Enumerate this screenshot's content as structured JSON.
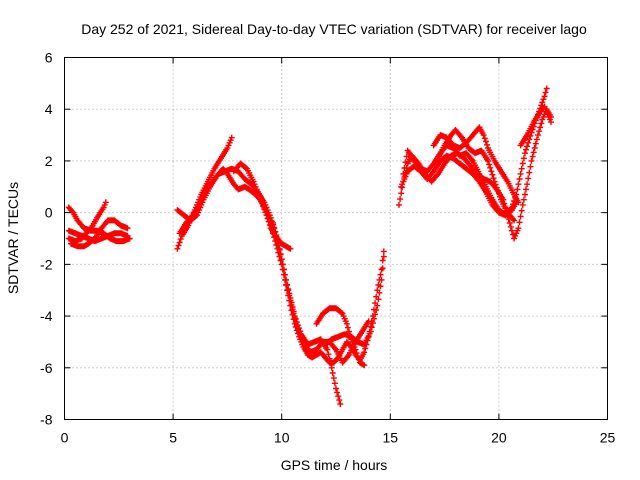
{
  "chart_data": {
    "type": "scatter",
    "title": "Day 252 of 2021, Sidereal Day-to-day VTEC variation (SDTVAR) for receiver lago",
    "xlabel": "GPS time / hours",
    "ylabel": "SDTVAR / TECUs",
    "xlim": [
      0,
      25
    ],
    "ylim": [
      -8,
      6
    ],
    "xticks": [
      0,
      5,
      10,
      15,
      20,
      25
    ],
    "yticks": [
      -8,
      -6,
      -4,
      -2,
      0,
      2,
      4,
      6
    ],
    "xtick_labels": [
      "0",
      "5",
      "10",
      "15",
      "20",
      "25"
    ],
    "ytick_labels": [
      "-8",
      "-6",
      "-4",
      "-2",
      "0",
      "2",
      "4",
      "6"
    ],
    "grid": true,
    "marker": "+",
    "series": [
      {
        "color": "#ff0000",
        "tracks": [
          [
            [
              0.2,
              -0.7
            ],
            [
              0.5,
              -0.8
            ],
            [
              0.8,
              -0.9
            ],
            [
              1.1,
              -1.0
            ],
            [
              1.4,
              -1.1
            ],
            [
              1.7,
              -1.0
            ],
            [
              2.0,
              -0.9
            ],
            [
              2.3,
              -0.8
            ],
            [
              2.6,
              -0.8
            ],
            [
              2.9,
              -0.9
            ]
          ],
          [
            [
              0.2,
              0.2
            ],
            [
              0.4,
              0.0
            ],
            [
              0.6,
              -0.3
            ],
            [
              0.9,
              -0.6
            ],
            [
              1.2,
              -0.7
            ],
            [
              1.5,
              -0.7
            ],
            [
              1.8,
              -0.8
            ],
            [
              2.1,
              -1.0
            ],
            [
              2.4,
              -1.1
            ],
            [
              2.7,
              -1.1
            ],
            [
              3.0,
              -1.0
            ]
          ],
          [
            [
              0.3,
              -1.2
            ],
            [
              0.6,
              -1.3
            ],
            [
              0.9,
              -1.3
            ],
            [
              1.1,
              -1.2
            ],
            [
              1.4,
              -1.0
            ],
            [
              1.7,
              -0.6
            ],
            [
              2.0,
              -0.3
            ],
            [
              2.3,
              -0.3
            ],
            [
              2.6,
              -0.5
            ],
            [
              2.9,
              -0.6
            ]
          ],
          [
            [
              0.2,
              -1.0
            ],
            [
              0.5,
              -1.1
            ],
            [
              0.8,
              -1.0
            ],
            [
              1.0,
              -0.8
            ],
            [
              1.3,
              -0.5
            ],
            [
              1.5,
              -0.2
            ],
            [
              1.8,
              0.2
            ],
            [
              1.9,
              0.4
            ]
          ],
          [
            [
              5.2,
              0.1
            ],
            [
              5.5,
              -0.1
            ],
            [
              5.8,
              -0.3
            ],
            [
              6.1,
              -0.1
            ],
            [
              6.4,
              0.5
            ],
            [
              6.7,
              1.0
            ],
            [
              7.0,
              1.4
            ],
            [
              7.3,
              1.7
            ],
            [
              7.5,
              1.5
            ],
            [
              7.8,
              1.1
            ],
            [
              8.0,
              0.9
            ],
            [
              8.3,
              1.0
            ],
            [
              8.5,
              0.9
            ],
            [
              8.8,
              0.7
            ],
            [
              9.0,
              0.5
            ],
            [
              9.2,
              0.2
            ],
            [
              9.4,
              -0.2
            ],
            [
              9.6,
              -0.8
            ],
            [
              9.8,
              -1.4
            ],
            [
              10.0,
              -2.0
            ],
            [
              10.2,
              -2.8
            ],
            [
              10.4,
              -3.6
            ],
            [
              10.6,
              -4.3
            ],
            [
              10.8,
              -4.8
            ],
            [
              11.0,
              -5.2
            ],
            [
              11.2,
              -5.5
            ],
            [
              11.4,
              -5.6
            ],
            [
              11.6,
              -5.5
            ],
            [
              11.8,
              -5.4
            ],
            [
              12.0,
              -5.6
            ],
            [
              12.2,
              -5.8
            ],
            [
              12.4,
              -5.8
            ],
            [
              12.6,
              -5.6
            ],
            [
              12.8,
              -5.3
            ],
            [
              13.0,
              -5.0
            ],
            [
              13.2,
              -5.2
            ],
            [
              13.4,
              -5.5
            ],
            [
              13.6,
              -5.7
            ],
            [
              13.8,
              -5.4
            ],
            [
              14.0,
              -4.8
            ],
            [
              14.2,
              -4.0
            ],
            [
              14.4,
              -3.0
            ],
            [
              14.6,
              -2.2
            ],
            [
              14.7,
              -1.5
            ]
          ],
          [
            [
              5.2,
              -1.4
            ],
            [
              5.4,
              -0.9
            ],
            [
              5.7,
              -0.5
            ],
            [
              6.0,
              0.1
            ],
            [
              6.3,
              0.7
            ],
            [
              6.6,
              1.2
            ],
            [
              6.9,
              1.7
            ],
            [
              7.2,
              2.1
            ],
            [
              7.5,
              2.5
            ],
            [
              7.7,
              2.9
            ]
          ],
          [
            [
              5.3,
              -0.8
            ],
            [
              5.6,
              -0.4
            ],
            [
              5.9,
              -0.1
            ],
            [
              6.2,
              0.3
            ],
            [
              6.5,
              0.8
            ],
            [
              6.8,
              1.2
            ],
            [
              7.1,
              1.5
            ],
            [
              7.4,
              1.6
            ],
            [
              7.7,
              1.7
            ],
            [
              8.0,
              1.6
            ],
            [
              8.3,
              1.3
            ],
            [
              8.6,
              1.1
            ],
            [
              8.9,
              0.8
            ],
            [
              9.2,
              0.4
            ],
            [
              9.5,
              -0.2
            ],
            [
              9.8,
              -1.0
            ],
            [
              10.1,
              -2.2
            ],
            [
              10.4,
              -3.4
            ],
            [
              10.7,
              -4.4
            ],
            [
              11.0,
              -5.0
            ],
            [
              11.3,
              -5.4
            ],
            [
              11.6,
              -5.3
            ],
            [
              11.9,
              -5.0
            ],
            [
              12.2,
              -5.0
            ],
            [
              12.5,
              -5.3
            ],
            [
              12.8,
              -5.8
            ],
            [
              13.1,
              -5.5
            ],
            [
              13.4,
              -5.0
            ],
            [
              13.7,
              -4.6
            ],
            [
              14.0,
              -4.2
            ]
          ],
          [
            [
              7.8,
              1.6
            ],
            [
              8.1,
              1.9
            ],
            [
              8.4,
              1.7
            ],
            [
              8.7,
              1.2
            ],
            [
              9.0,
              0.6
            ],
            [
              9.3,
              -0.1
            ],
            [
              9.5,
              -0.6
            ],
            [
              9.7,
              -0.9
            ],
            [
              10.0,
              -1.2
            ],
            [
              10.2,
              -1.3
            ],
            [
              10.4,
              -1.4
            ]
          ],
          [
            [
              9.6,
              -0.4
            ],
            [
              9.8,
              -1.1
            ],
            [
              10.0,
              -1.8
            ],
            [
              10.2,
              -2.6
            ],
            [
              10.4,
              -3.3
            ],
            [
              10.6,
              -4.0
            ],
            [
              10.9,
              -4.7
            ],
            [
              11.2,
              -5.1
            ],
            [
              11.5,
              -5.0
            ],
            [
              11.8,
              -4.9
            ],
            [
              12.1,
              -5.3
            ],
            [
              12.3,
              -6.0
            ],
            [
              12.5,
              -6.8
            ],
            [
              12.7,
              -7.4
            ]
          ],
          [
            [
              11.6,
              -4.3
            ],
            [
              11.9,
              -3.9
            ],
            [
              12.2,
              -3.7
            ],
            [
              12.5,
              -3.7
            ],
            [
              12.8,
              -3.9
            ],
            [
              13.0,
              -4.3
            ],
            [
              13.2,
              -4.9
            ],
            [
              13.4,
              -5.3
            ],
            [
              13.6,
              -5.8
            ],
            [
              13.8,
              -5.9
            ]
          ],
          [
            [
              12.0,
              -5.1
            ],
            [
              12.3,
              -4.9
            ],
            [
              12.6,
              -4.8
            ],
            [
              12.9,
              -4.7
            ],
            [
              13.2,
              -4.8
            ],
            [
              13.5,
              -5.0
            ],
            [
              13.8,
              -5.1
            ],
            [
              14.1,
              -4.6
            ],
            [
              14.4,
              -3.6
            ],
            [
              14.6,
              -2.6
            ],
            [
              14.7,
              -1.7
            ]
          ],
          [
            [
              15.4,
              0.3
            ],
            [
              15.6,
              1.2
            ],
            [
              15.8,
              1.9
            ],
            [
              16.0,
              2.2
            ],
            [
              16.3,
              1.9
            ],
            [
              16.6,
              1.5
            ],
            [
              16.9,
              1.2
            ],
            [
              17.2,
              1.5
            ],
            [
              17.5,
              1.9
            ],
            [
              17.8,
              2.2
            ],
            [
              18.1,
              2.3
            ],
            [
              18.4,
              2.1
            ],
            [
              18.7,
              1.8
            ],
            [
              19.0,
              1.5
            ],
            [
              19.3,
              1.3
            ],
            [
              19.6,
              1.2
            ],
            [
              19.9,
              0.9
            ],
            [
              20.2,
              0.5
            ],
            [
              20.5,
              -0.4
            ],
            [
              20.7,
              -1.0
            ],
            [
              20.9,
              -0.6
            ],
            [
              21.1,
              0.3
            ],
            [
              21.3,
              1.1
            ],
            [
              21.5,
              2.0
            ],
            [
              21.8,
              3.0
            ],
            [
              22.0,
              3.6
            ],
            [
              22.2,
              4.0
            ],
            [
              22.4,
              3.7
            ]
          ],
          [
            [
              15.6,
              1.5
            ],
            [
              15.8,
              2.4
            ],
            [
              16.1,
              2.0
            ],
            [
              16.4,
              1.7
            ],
            [
              16.7,
              1.6
            ],
            [
              17.0,
              1.9
            ],
            [
              17.3,
              2.3
            ],
            [
              17.6,
              2.6
            ],
            [
              17.9,
              2.5
            ],
            [
              18.2,
              2.2
            ],
            [
              18.5,
              2.3
            ],
            [
              18.8,
              2.0
            ],
            [
              19.1,
              1.5
            ],
            [
              19.4,
              1.0
            ],
            [
              19.7,
              0.5
            ],
            [
              20.0,
              0.1
            ],
            [
              20.3,
              -0.1
            ],
            [
              20.6,
              0.2
            ],
            [
              20.8,
              0.7
            ],
            [
              21.0,
              1.5
            ],
            [
              21.2,
              2.3
            ],
            [
              21.5,
              3.1
            ],
            [
              21.8,
              3.8
            ],
            [
              22.1,
              4.5
            ],
            [
              22.2,
              4.8
            ]
          ],
          [
            [
              15.5,
              1.0
            ],
            [
              15.8,
              1.6
            ],
            [
              16.1,
              1.8
            ],
            [
              16.4,
              1.6
            ],
            [
              16.7,
              1.3
            ],
            [
              17.0,
              1.6
            ],
            [
              17.3,
              2.0
            ],
            [
              17.6,
              2.2
            ],
            [
              17.9,
              2.1
            ],
            [
              18.2,
              1.9
            ],
            [
              18.5,
              1.7
            ],
            [
              18.8,
              1.5
            ],
            [
              19.1,
              1.2
            ],
            [
              19.4,
              0.8
            ],
            [
              19.7,
              0.3
            ],
            [
              20.0,
              0.0
            ],
            [
              20.3,
              -0.1
            ],
            [
              20.6,
              0.1
            ],
            [
              20.8,
              0.4
            ]
          ],
          [
            [
              17.0,
              2.6
            ],
            [
              17.3,
              3.0
            ],
            [
              17.6,
              2.9
            ],
            [
              17.9,
              2.6
            ],
            [
              18.2,
              2.5
            ],
            [
              18.5,
              2.7
            ],
            [
              18.8,
              3.0
            ],
            [
              19.1,
              3.3
            ],
            [
              19.3,
              3.0
            ],
            [
              19.5,
              2.5
            ],
            [
              19.8,
              2.0
            ],
            [
              20.1,
              1.6
            ],
            [
              20.4,
              1.2
            ],
            [
              20.7,
              0.7
            ],
            [
              20.9,
              0.4
            ]
          ],
          [
            [
              17.2,
              2.1
            ],
            [
              17.5,
              2.6
            ],
            [
              17.8,
              3.0
            ],
            [
              18.0,
              3.2
            ],
            [
              18.3,
              2.9
            ],
            [
              18.6,
              2.5
            ],
            [
              18.9,
              2.3
            ],
            [
              19.2,
              2.4
            ],
            [
              19.5,
              2.0
            ],
            [
              19.8,
              1.2
            ],
            [
              20.1,
              0.5
            ],
            [
              20.4,
              0.0
            ],
            [
              20.7,
              -0.3
            ]
          ],
          [
            [
              21.0,
              2.6
            ],
            [
              21.3,
              3.0
            ],
            [
              21.6,
              3.5
            ],
            [
              21.9,
              3.9
            ],
            [
              22.1,
              4.1
            ],
            [
              22.4,
              3.5
            ]
          ]
        ]
      }
    ]
  }
}
